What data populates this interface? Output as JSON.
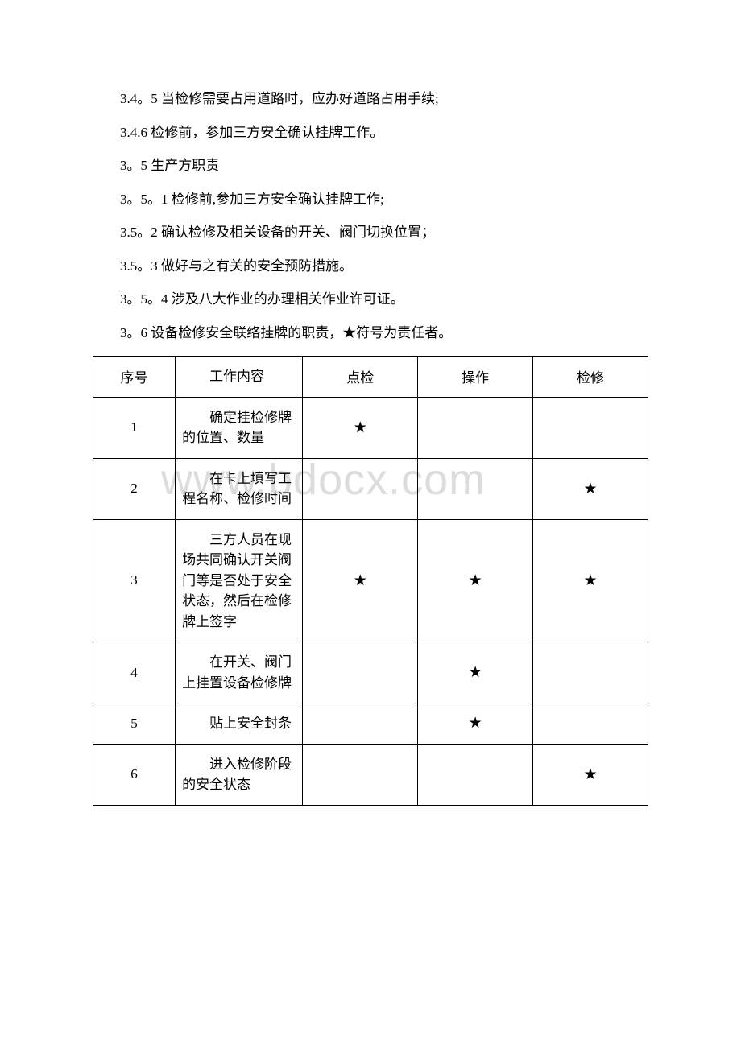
{
  "watermark": "www.bdocx.com",
  "paragraphs": [
    "3.4。5 当检修需要占用道路时，应办好道路占用手续;",
    "3.4.6 检修前，参加三方安全确认挂牌工作。",
    "3。5 生产方职责",
    "3。5。1 检修前,参加三方安全确认挂牌工作;",
    "3.5。2 确认检修及相关设备的开关、阀门切换位置；",
    "3.5。3 做好与之有关的安全预防措施。",
    "3。5。4 涉及八大作业的办理相关作业许可证。",
    "3。6 设备检修安全联络挂牌的职责，★符号为责任者。"
  ],
  "table": {
    "star": "★",
    "headers": {
      "seq": "序号",
      "work": "工作内容",
      "check": "点检",
      "op": "操作",
      "repair": "检修"
    },
    "rows": [
      {
        "seq": "1",
        "work": "确定挂检修牌的位置、数量",
        "check": true,
        "op": false,
        "repair": false
      },
      {
        "seq": "2",
        "work": "在卡上填写工程名称、检修时间",
        "check": false,
        "op": false,
        "repair": true
      },
      {
        "seq": "3",
        "work": "三方人员在现场共同确认开关阀门等是否处于安全状态，然后在检修牌上签字",
        "check": true,
        "op": true,
        "repair": true
      },
      {
        "seq": "4",
        "work": "在开关、阀门上挂置设备检修牌",
        "check": false,
        "op": true,
        "repair": false
      },
      {
        "seq": "5",
        "work": "贴上安全封条",
        "check": false,
        "op": true,
        "repair": false
      },
      {
        "seq": "6",
        "work": "进入检修阶段的安全状态",
        "check": false,
        "op": false,
        "repair": true
      }
    ]
  }
}
